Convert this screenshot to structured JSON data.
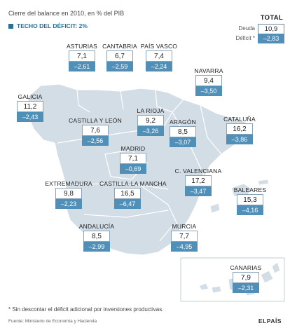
{
  "subtitle": "Cierre del balance en 2010, en % del PIB",
  "deficit_ceiling": "TECHO DEL DÉFICIT: 2%",
  "total": {
    "title": "TOTAL",
    "debt_label": "Deuda",
    "deficit_label": "Déficit *",
    "debt": "10,9",
    "deficit": "–2,83"
  },
  "regions": [
    {
      "name": "ASTURIAS",
      "debt": "7,1",
      "deficit": "–2,61"
    },
    {
      "name": "CANTABRIA",
      "debt": "6,7",
      "deficit": "–2,59"
    },
    {
      "name": "PAÍS VASCO",
      "debt": "7,4",
      "deficit": "–2,24"
    },
    {
      "name": "NAVARRA",
      "debt": "9,4",
      "deficit": "–3,50"
    },
    {
      "name": "GALICIA",
      "debt": "11,2",
      "deficit": "–2,43"
    },
    {
      "name": "LA RIOJA",
      "debt": "9,2",
      "deficit": "–3,26"
    },
    {
      "name": "CASTILLA Y LEÓN",
      "debt": "7,6",
      "deficit": "–2,56"
    },
    {
      "name": "ARAGÓN",
      "debt": "8,5",
      "deficit": "–3,07"
    },
    {
      "name": "CATALUÑA",
      "debt": "16,2",
      "deficit": "–3,86"
    },
    {
      "name": "MADRID",
      "debt": "7,1",
      "deficit": "–0,69"
    },
    {
      "name": "C. VALENCIANA",
      "debt": "17,2",
      "deficit": "–3,47"
    },
    {
      "name": "EXTREMADURA",
      "debt": "9,8",
      "deficit": "–2,23"
    },
    {
      "name": "CASTILLA-LA MANCHA",
      "debt": "16,5",
      "deficit": "–6,47"
    },
    {
      "name": "BALEARES",
      "debt": "15,3",
      "deficit": "–4,16"
    },
    {
      "name": "ANDALUCÍA",
      "debt": "8,5",
      "deficit": "–2,99"
    },
    {
      "name": "MURCIA",
      "debt": "7,7",
      "deficit": "–4,95"
    },
    {
      "name": "CANARIAS",
      "debt": "7,9",
      "deficit": "–2,31"
    }
  ],
  "footnote": "* Sin descontar el déficit adicional por inversiones productivas.",
  "source": "Fuente: Ministerio de Economía y Hacienda",
  "brand": "ELPAÍS",
  "colors": {
    "map_fill": "#d3dde6",
    "map_stroke": "#ffffff",
    "deficit_box": "#4f8fb8",
    "ceiling_text": "#2b6f95"
  }
}
